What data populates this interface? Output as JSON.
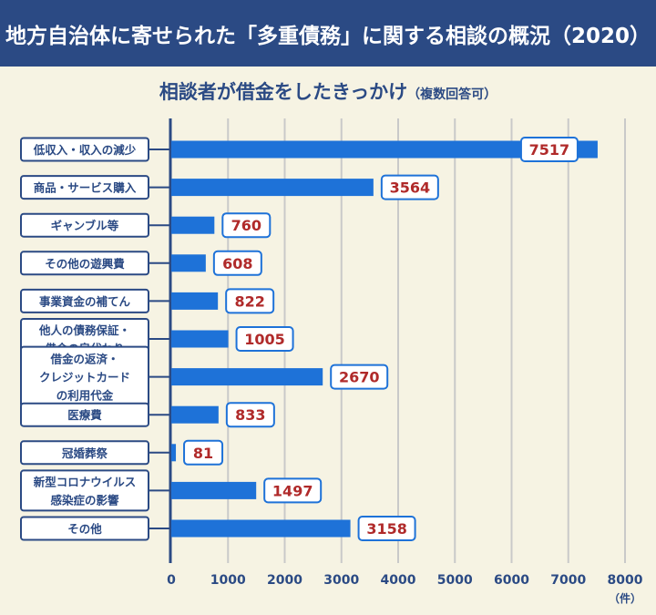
{
  "header": {
    "title": "地方自治体に寄せられた「多重債務」に関する相談の概況（2020）"
  },
  "subtitle": {
    "main": "相談者が借金をしたきっかけ",
    "note": "（複数回答可）"
  },
  "colors": {
    "navy": "#2b4a84",
    "bar": "#1e72d8",
    "value_text": "#b02a2a",
    "background": "#f6f3e3",
    "grid": "#c9c9c9"
  },
  "chart_data": {
    "type": "bar",
    "orientation": "horizontal",
    "title": "地方自治体に寄せられた「多重債務」に関する相談の概況（2020）",
    "subtitle": "相談者が借金をしたきっかけ（複数回答可）",
    "categories": [
      [
        "低収入・収入の減少"
      ],
      [
        "商品・サービス購入"
      ],
      [
        "ギャンブル等"
      ],
      [
        "その他の遊興費"
      ],
      [
        "事業資金の補てん"
      ],
      [
        "他人の債務保証・",
        "借金の肩代わり"
      ],
      [
        "借金の返済・",
        "クレジットカード",
        "の利用代金"
      ],
      [
        "医療費"
      ],
      [
        "冠婚葬祭"
      ],
      [
        "新型コロナウイルス",
        "感染症の影響"
      ],
      [
        "その他"
      ]
    ],
    "values": [
      7517,
      3564,
      760,
      608,
      822,
      1005,
      2670,
      833,
      81,
      1497,
      3158
    ],
    "xlim": [
      0,
      8000
    ],
    "xticks": [
      "0",
      "1000",
      "2000",
      "3000",
      "4000",
      "5000",
      "6000",
      "7000",
      "8000"
    ],
    "xunit": "（件）",
    "grid": true
  }
}
